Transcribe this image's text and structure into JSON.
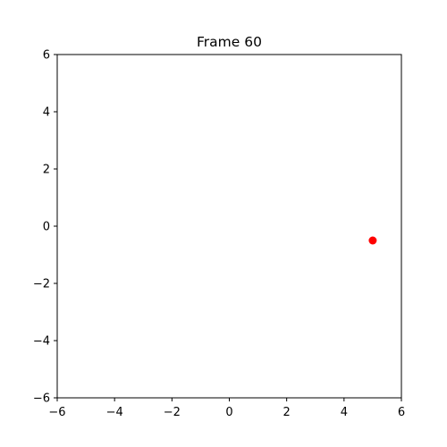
{
  "chart_data": {
    "type": "scatter",
    "title": "Frame 60",
    "xlabel": "",
    "ylabel": "",
    "xlim": [
      -6,
      6
    ],
    "ylim": [
      -6,
      6
    ],
    "xticks": [
      -6,
      -4,
      -2,
      0,
      2,
      4,
      6
    ],
    "yticks": [
      -6,
      -4,
      -2,
      0,
      2,
      4,
      6
    ],
    "xtick_labels": [
      "−6",
      "−4",
      "−2",
      "0",
      "2",
      "4",
      "6"
    ],
    "ytick_labels": [
      "−6",
      "−4",
      "−2",
      "0",
      "2",
      "4",
      "6"
    ],
    "grid": false,
    "series": [
      {
        "color": "#ff0000",
        "points": [
          {
            "x": 5.0,
            "y": -0.5
          }
        ]
      }
    ]
  }
}
